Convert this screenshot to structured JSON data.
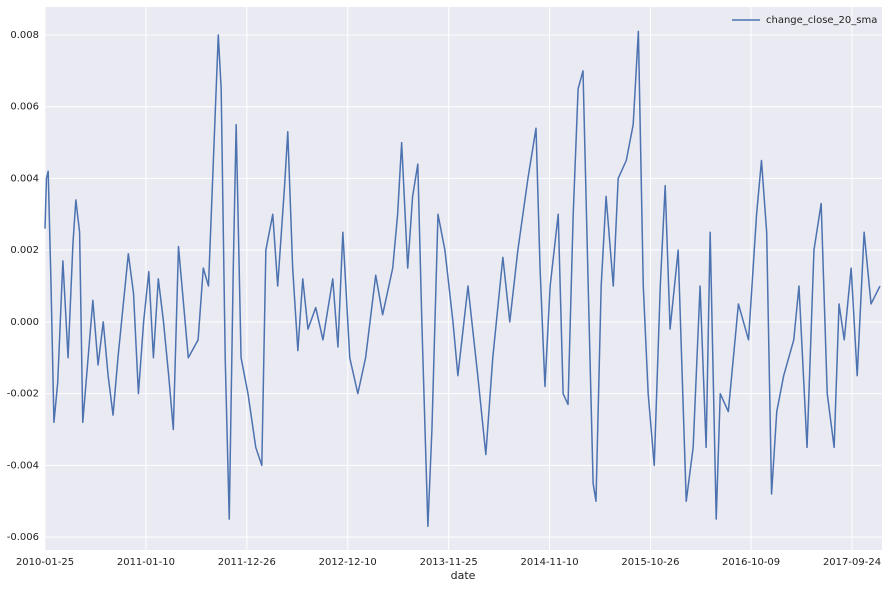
{
  "chart_data": {
    "type": "line",
    "x_label": "date",
    "x": [
      "2010-01-25",
      "2010-01-30",
      "2010-02-05",
      "2010-02-15",
      "2010-02-25",
      "2010-03-10",
      "2010-03-28",
      "2010-04-15",
      "2010-05-02",
      "2010-05-12",
      "2010-05-25",
      "2010-06-05",
      "2010-07-10",
      "2010-07-28",
      "2010-08-15",
      "2010-09-01",
      "2010-09-18",
      "2010-10-05",
      "2010-11-10",
      "2010-11-28",
      "2010-12-15",
      "2011-01-02",
      "2011-01-20",
      "2011-02-05",
      "2011-02-22",
      "2011-03-12",
      "2011-03-30",
      "2011-04-15",
      "2011-05-03",
      "2011-06-06",
      "2011-07-10",
      "2011-07-28",
      "2011-08-15",
      "2011-09-01",
      "2011-09-18",
      "2011-09-28",
      "2011-10-12",
      "2011-10-26",
      "2011-11-09",
      "2011-11-19",
      "2011-12-06",
      "2011-12-30",
      "2012-01-26",
      "2012-02-16",
      "2012-03-01",
      "2012-03-25",
      "2012-04-11",
      "2012-05-05",
      "2012-05-16",
      "2012-06-02",
      "2012-06-20",
      "2012-07-07",
      "2012-07-25",
      "2012-08-21",
      "2012-09-15",
      "2012-10-19",
      "2012-11-06",
      "2012-11-23",
      "2012-12-17",
      "2013-01-14",
      "2013-02-10",
      "2013-03-17",
      "2013-04-10",
      "2013-05-15",
      "2013-06-01",
      "2013-06-15",
      "2013-07-06",
      "2013-07-23",
      "2013-08-10",
      "2013-08-24",
      "2013-09-14",
      "2013-09-28",
      "2013-10-19",
      "2013-11-12",
      "2013-12-10",
      "2013-12-27",
      "2014-01-31",
      "2014-03-06",
      "2014-04-03",
      "2014-04-27",
      "2014-06-01",
      "2014-06-25",
      "2014-07-23",
      "2014-08-27",
      "2014-09-24",
      "2014-10-08",
      "2014-10-25",
      "2014-11-12",
      "2014-12-10",
      "2014-12-27",
      "2015-01-13",
      "2015-01-31",
      "2015-02-17",
      "2015-03-06",
      "2015-03-24",
      "2015-04-10",
      "2015-04-20",
      "2015-05-08",
      "2015-05-25",
      "2015-06-19",
      "2015-07-06",
      "2015-08-03",
      "2015-08-27",
      "2015-09-14",
      "2015-10-01",
      "2015-10-18",
      "2015-11-08",
      "2015-11-29",
      "2015-12-16",
      "2016-01-02",
      "2016-01-30",
      "2016-02-27",
      "2016-03-22",
      "2016-04-15",
      "2016-05-06",
      "2016-05-20",
      "2016-06-10",
      "2016-06-24",
      "2016-07-22",
      "2016-08-26",
      "2016-09-30",
      "2016-10-28",
      "2016-11-14",
      "2016-12-02",
      "2016-12-19",
      "2017-01-06",
      "2017-01-30",
      "2017-03-06",
      "2017-03-24",
      "2017-04-21",
      "2017-05-15",
      "2017-06-09",
      "2017-06-30",
      "2017-07-24",
      "2017-08-10",
      "2017-08-28",
      "2017-09-21",
      "2017-10-12",
      "2017-11-05",
      "2017-11-29",
      "2017-12-30"
    ],
    "series": [
      {
        "name": "change_close_20_sma",
        "color": "#4c72b0",
        "values": [
          0.0026,
          0.004,
          0.0042,
          0.001,
          -0.0028,
          -0.0017,
          0.0017,
          -0.001,
          0.0022,
          0.0034,
          0.0025,
          -0.0028,
          0.0006,
          -0.0012,
          0.0,
          -0.0015,
          -0.0026,
          -0.001,
          0.0019,
          0.0008,
          -0.002,
          0.0,
          0.0014,
          -0.001,
          0.0012,
          0.0,
          -0.0015,
          -0.003,
          0.0021,
          -0.001,
          -0.0005,
          0.0015,
          0.001,
          0.0045,
          0.008,
          0.0065,
          -0.001,
          -0.0055,
          0.0015,
          0.0055,
          -0.001,
          -0.002,
          -0.0035,
          -0.004,
          0.002,
          0.003,
          0.001,
          0.0038,
          0.0053,
          0.0015,
          -0.0008,
          0.0012,
          -0.0002,
          0.0004,
          -0.0005,
          0.0012,
          -0.0007,
          0.0025,
          -0.001,
          -0.002,
          -0.001,
          0.0013,
          0.0002,
          0.0015,
          0.003,
          0.005,
          0.0015,
          0.0035,
          0.0044,
          0.0,
          -0.0057,
          -0.003,
          0.003,
          0.002,
          0.0,
          -0.0015,
          0.001,
          -0.0015,
          -0.0037,
          -0.001,
          0.0018,
          0.0,
          0.002,
          0.004,
          0.0054,
          0.0015,
          -0.0018,
          0.001,
          0.003,
          -0.002,
          -0.0023,
          0.003,
          0.0065,
          0.007,
          0.001,
          -0.0045,
          -0.005,
          0.001,
          0.0035,
          0.001,
          0.004,
          0.0045,
          0.0055,
          0.0081,
          0.001,
          -0.002,
          -0.004,
          0.001,
          0.0038,
          -0.0002,
          0.002,
          -0.005,
          -0.0035,
          0.001,
          -0.0035,
          0.0025,
          -0.0055,
          -0.002,
          -0.0025,
          0.0005,
          -0.0005,
          0.003,
          0.0045,
          0.0025,
          -0.0048,
          -0.0025,
          -0.0015,
          -0.0005,
          0.001,
          -0.0035,
          0.002,
          0.0033,
          -0.002,
          -0.0035,
          0.0005,
          -0.0005,
          0.0015,
          -0.0015,
          0.0025,
          0.0005,
          0.001
        ]
      }
    ],
    "xlim": [
      "2010-01-25",
      "2018-01-06"
    ],
    "xticks": [
      "2010-01-25",
      "2011-01-10",
      "2011-12-26",
      "2012-12-10",
      "2013-11-25",
      "2014-11-10",
      "2015-10-26",
      "2016-10-09",
      "2017-09-24"
    ],
    "ylim": [
      -0.00636,
      0.00878
    ],
    "yticks": [
      -0.006,
      -0.004,
      -0.002,
      {
        "value": 0,
        "label": "0.000"
      },
      0.002,
      0.004,
      0.006,
      0.008
    ],
    "grid": true,
    "legend": "upper right"
  }
}
